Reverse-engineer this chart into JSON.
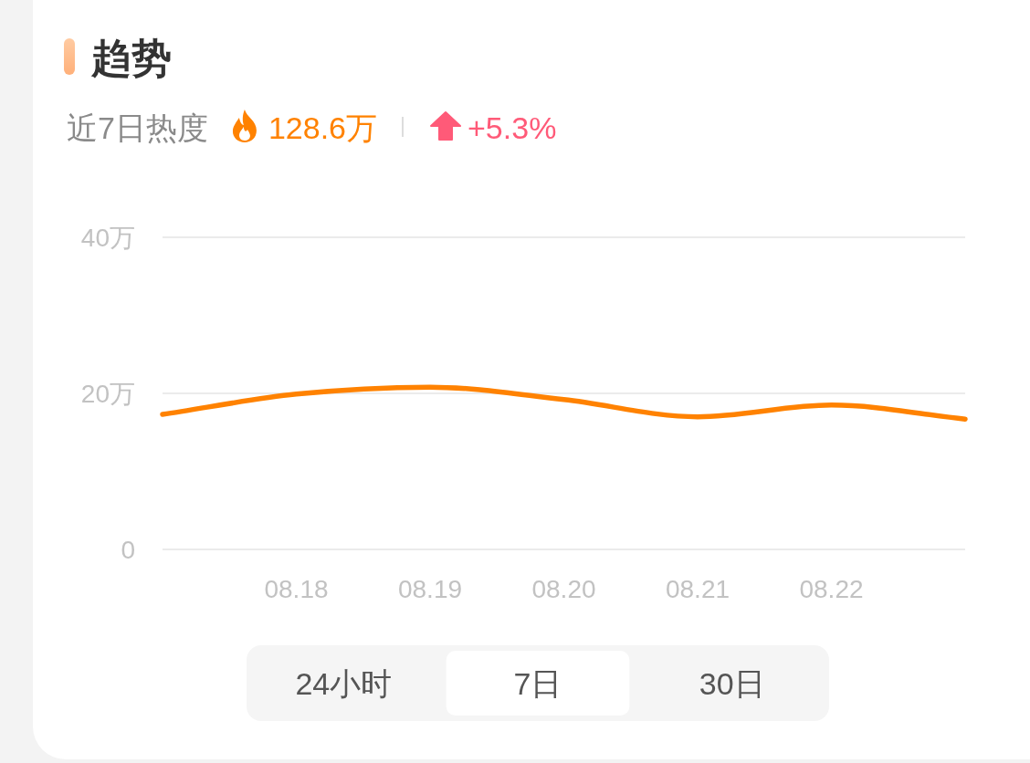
{
  "chart_data": {
    "type": "line",
    "title": "趋势",
    "subtitle": "近7日热度",
    "annotations": [
      "128.6万",
      "+5.3%",
      "24小时",
      "7日",
      "30日"
    ],
    "x": [
      "--08-17",
      "--08-18",
      "--08-19",
      "--08-20",
      "--08-21",
      "--08-22",
      "--08-23"
    ],
    "series": [
      {
        "color": "#ff8200",
        "values": [
          17.3,
          19.9,
          20.8,
          19.2,
          17.0,
          18.5,
          16.7
        ]
      }
    ],
    "xlim": [
      "--08-17",
      "--08-23"
    ],
    "xticks": [
      {
        "value": "--08-18",
        "label": "08.18"
      },
      {
        "value": "--08-19",
        "label": "08.19"
      },
      {
        "value": "--08-20",
        "label": "08.20"
      },
      {
        "value": "--08-21",
        "label": "08.21"
      },
      {
        "value": "--08-22",
        "label": "08.22"
      }
    ],
    "ylim": [
      0,
      40
    ],
    "yticks": [
      0,
      {
        "value": 20,
        "label": "20万"
      },
      {
        "value": 40,
        "label": "40万"
      }
    ],
    "grid": "y",
    "marker": "none",
    "line_style": "solid"
  }
}
